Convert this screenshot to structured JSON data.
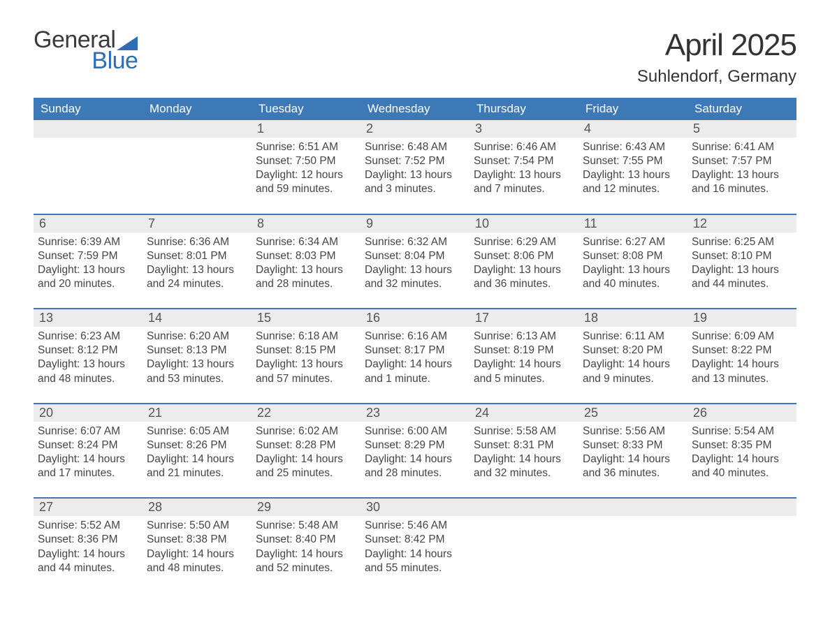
{
  "logo": {
    "general": "General",
    "blue": "Blue"
  },
  "title": "April 2025",
  "location": "Suhlendorf, Germany",
  "colors": {
    "header_bg": "#3c79b6",
    "header_text": "#ffffff",
    "daynum_bg": "#ececec",
    "text": "#333333",
    "logo_blue": "#2e6db3",
    "week_border": "#3c79b6"
  },
  "day_headers": [
    "Sunday",
    "Monday",
    "Tuesday",
    "Wednesday",
    "Thursday",
    "Friday",
    "Saturday"
  ],
  "weeks": [
    [
      {
        "n": "",
        "sr": "",
        "ss": "",
        "dl": ""
      },
      {
        "n": "",
        "sr": "",
        "ss": "",
        "dl": ""
      },
      {
        "n": "1",
        "sr": "Sunrise: 6:51 AM",
        "ss": "Sunset: 7:50 PM",
        "dl": "Daylight: 12 hours and 59 minutes."
      },
      {
        "n": "2",
        "sr": "Sunrise: 6:48 AM",
        "ss": "Sunset: 7:52 PM",
        "dl": "Daylight: 13 hours and 3 minutes."
      },
      {
        "n": "3",
        "sr": "Sunrise: 6:46 AM",
        "ss": "Sunset: 7:54 PM",
        "dl": "Daylight: 13 hours and 7 minutes."
      },
      {
        "n": "4",
        "sr": "Sunrise: 6:43 AM",
        "ss": "Sunset: 7:55 PM",
        "dl": "Daylight: 13 hours and 12 minutes."
      },
      {
        "n": "5",
        "sr": "Sunrise: 6:41 AM",
        "ss": "Sunset: 7:57 PM",
        "dl": "Daylight: 13 hours and 16 minutes."
      }
    ],
    [
      {
        "n": "6",
        "sr": "Sunrise: 6:39 AM",
        "ss": "Sunset: 7:59 PM",
        "dl": "Daylight: 13 hours and 20 minutes."
      },
      {
        "n": "7",
        "sr": "Sunrise: 6:36 AM",
        "ss": "Sunset: 8:01 PM",
        "dl": "Daylight: 13 hours and 24 minutes."
      },
      {
        "n": "8",
        "sr": "Sunrise: 6:34 AM",
        "ss": "Sunset: 8:03 PM",
        "dl": "Daylight: 13 hours and 28 minutes."
      },
      {
        "n": "9",
        "sr": "Sunrise: 6:32 AM",
        "ss": "Sunset: 8:04 PM",
        "dl": "Daylight: 13 hours and 32 minutes."
      },
      {
        "n": "10",
        "sr": "Sunrise: 6:29 AM",
        "ss": "Sunset: 8:06 PM",
        "dl": "Daylight: 13 hours and 36 minutes."
      },
      {
        "n": "11",
        "sr": "Sunrise: 6:27 AM",
        "ss": "Sunset: 8:08 PM",
        "dl": "Daylight: 13 hours and 40 minutes."
      },
      {
        "n": "12",
        "sr": "Sunrise: 6:25 AM",
        "ss": "Sunset: 8:10 PM",
        "dl": "Daylight: 13 hours and 44 minutes."
      }
    ],
    [
      {
        "n": "13",
        "sr": "Sunrise: 6:23 AM",
        "ss": "Sunset: 8:12 PM",
        "dl": "Daylight: 13 hours and 48 minutes."
      },
      {
        "n": "14",
        "sr": "Sunrise: 6:20 AM",
        "ss": "Sunset: 8:13 PM",
        "dl": "Daylight: 13 hours and 53 minutes."
      },
      {
        "n": "15",
        "sr": "Sunrise: 6:18 AM",
        "ss": "Sunset: 8:15 PM",
        "dl": "Daylight: 13 hours and 57 minutes."
      },
      {
        "n": "16",
        "sr": "Sunrise: 6:16 AM",
        "ss": "Sunset: 8:17 PM",
        "dl": "Daylight: 14 hours and 1 minute."
      },
      {
        "n": "17",
        "sr": "Sunrise: 6:13 AM",
        "ss": "Sunset: 8:19 PM",
        "dl": "Daylight: 14 hours and 5 minutes."
      },
      {
        "n": "18",
        "sr": "Sunrise: 6:11 AM",
        "ss": "Sunset: 8:20 PM",
        "dl": "Daylight: 14 hours and 9 minutes."
      },
      {
        "n": "19",
        "sr": "Sunrise: 6:09 AM",
        "ss": "Sunset: 8:22 PM",
        "dl": "Daylight: 14 hours and 13 minutes."
      }
    ],
    [
      {
        "n": "20",
        "sr": "Sunrise: 6:07 AM",
        "ss": "Sunset: 8:24 PM",
        "dl": "Daylight: 14 hours and 17 minutes."
      },
      {
        "n": "21",
        "sr": "Sunrise: 6:05 AM",
        "ss": "Sunset: 8:26 PM",
        "dl": "Daylight: 14 hours and 21 minutes."
      },
      {
        "n": "22",
        "sr": "Sunrise: 6:02 AM",
        "ss": "Sunset: 8:28 PM",
        "dl": "Daylight: 14 hours and 25 minutes."
      },
      {
        "n": "23",
        "sr": "Sunrise: 6:00 AM",
        "ss": "Sunset: 8:29 PM",
        "dl": "Daylight: 14 hours and 28 minutes."
      },
      {
        "n": "24",
        "sr": "Sunrise: 5:58 AM",
        "ss": "Sunset: 8:31 PM",
        "dl": "Daylight: 14 hours and 32 minutes."
      },
      {
        "n": "25",
        "sr": "Sunrise: 5:56 AM",
        "ss": "Sunset: 8:33 PM",
        "dl": "Daylight: 14 hours and 36 minutes."
      },
      {
        "n": "26",
        "sr": "Sunrise: 5:54 AM",
        "ss": "Sunset: 8:35 PM",
        "dl": "Daylight: 14 hours and 40 minutes."
      }
    ],
    [
      {
        "n": "27",
        "sr": "Sunrise: 5:52 AM",
        "ss": "Sunset: 8:36 PM",
        "dl": "Daylight: 14 hours and 44 minutes."
      },
      {
        "n": "28",
        "sr": "Sunrise: 5:50 AM",
        "ss": "Sunset: 8:38 PM",
        "dl": "Daylight: 14 hours and 48 minutes."
      },
      {
        "n": "29",
        "sr": "Sunrise: 5:48 AM",
        "ss": "Sunset: 8:40 PM",
        "dl": "Daylight: 14 hours and 52 minutes."
      },
      {
        "n": "30",
        "sr": "Sunrise: 5:46 AM",
        "ss": "Sunset: 8:42 PM",
        "dl": "Daylight: 14 hours and 55 minutes."
      },
      {
        "n": "",
        "sr": "",
        "ss": "",
        "dl": ""
      },
      {
        "n": "",
        "sr": "",
        "ss": "",
        "dl": ""
      },
      {
        "n": "",
        "sr": "",
        "ss": "",
        "dl": ""
      }
    ]
  ]
}
